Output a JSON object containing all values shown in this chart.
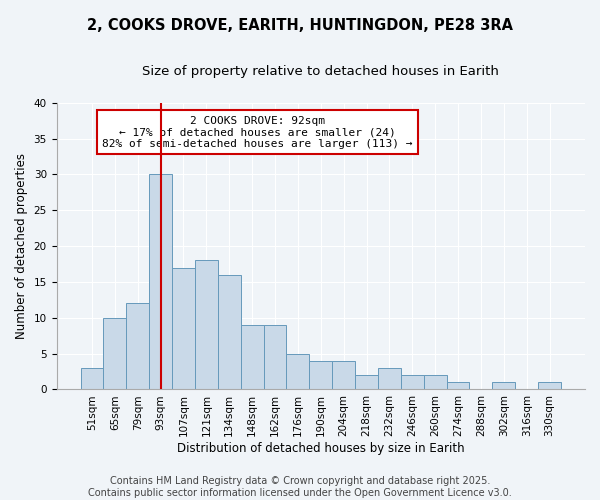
{
  "title": "2, COOKS DROVE, EARITH, HUNTINGDON, PE28 3RA",
  "subtitle": "Size of property relative to detached houses in Earith",
  "xlabel": "Distribution of detached houses by size in Earith",
  "ylabel": "Number of detached properties",
  "bar_values": [
    3,
    10,
    12,
    30,
    17,
    18,
    16,
    9,
    9,
    5,
    4,
    4,
    2,
    3,
    2,
    2,
    1,
    0,
    1,
    0,
    1
  ],
  "categories": [
    "51sqm",
    "65sqm",
    "79sqm",
    "93sqm",
    "107sqm",
    "121sqm",
    "134sqm",
    "148sqm",
    "162sqm",
    "176sqm",
    "190sqm",
    "204sqm",
    "218sqm",
    "232sqm",
    "246sqm",
    "260sqm",
    "274sqm",
    "288sqm",
    "302sqm",
    "316sqm",
    "330sqm"
  ],
  "bar_color": "#c9d9e8",
  "bar_edge_color": "#6699bb",
  "bar_edge_width": 0.7,
  "ylim": [
    0,
    40
  ],
  "yticks": [
    0,
    5,
    10,
    15,
    20,
    25,
    30,
    35,
    40
  ],
  "red_line_index": 3,
  "red_line_color": "#cc0000",
  "annotation_text": "2 COOKS DROVE: 92sqm\n← 17% of detached houses are smaller (24)\n82% of semi-detached houses are larger (113) →",
  "annotation_box_facecolor": "#ffffff",
  "annotation_box_edgecolor": "#cc0000",
  "background_color": "#f0f4f8",
  "grid_color": "#ffffff",
  "footer_text": "Contains HM Land Registry data © Crown copyright and database right 2025.\nContains public sector information licensed under the Open Government Licence v3.0.",
  "title_fontsize": 10.5,
  "subtitle_fontsize": 9.5,
  "ylabel_fontsize": 8.5,
  "xlabel_fontsize": 8.5,
  "tick_fontsize": 7.5,
  "annotation_fontsize": 8,
  "footer_fontsize": 7
}
